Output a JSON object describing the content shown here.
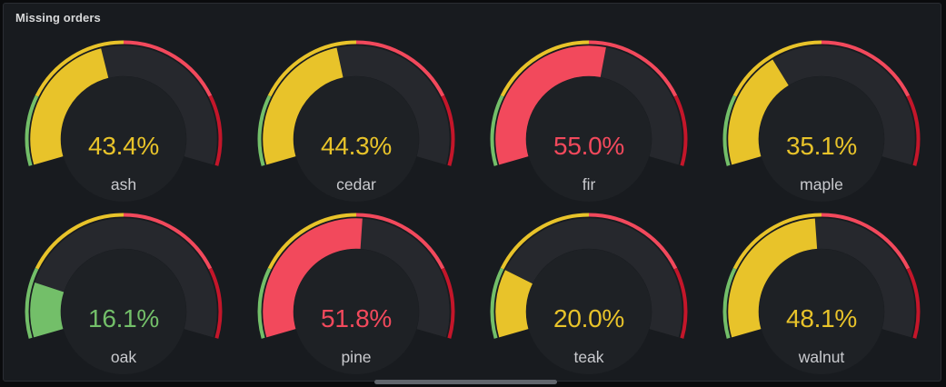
{
  "panel": {
    "title": "Missing orders"
  },
  "colors": {
    "page_bg": "#0a0b0d",
    "panel_bg": "#181b1f",
    "panel_border": "#2a2d33",
    "title_text": "#d8d9da",
    "label_text": "#c9cace",
    "track": "#26282d",
    "scrollbar_thumb": "#61656c",
    "green": "#73bf69",
    "yellow": "#e8c32a",
    "red": "#f2495c",
    "dark_red": "#c4162a"
  },
  "gauge_config": {
    "min": 0,
    "max": 100,
    "start_angle": 196,
    "sweep": 212,
    "thresholds": [
      {
        "value": 0,
        "color_key": "green"
      },
      {
        "value": 20,
        "color_key": "yellow"
      },
      {
        "value": 50,
        "color_key": "red"
      },
      {
        "value": 80,
        "color_key": "dark_red"
      }
    ]
  },
  "chart_data": {
    "type": "gauge",
    "title": "Missing orders",
    "unit": "%",
    "min": 0,
    "max": 100,
    "layout": "4 columns x 2 rows",
    "thresholds": [
      {
        "from": 0,
        "to": 20,
        "color": "green"
      },
      {
        "from": 20,
        "to": 50,
        "color": "yellow"
      },
      {
        "from": 50,
        "to": 80,
        "color": "red"
      },
      {
        "from": 80,
        "to": 100,
        "color": "dark-red"
      }
    ],
    "series": [
      {
        "label": "ash",
        "value": 43.4,
        "display": "43.4%",
        "level": "yellow"
      },
      {
        "label": "cedar",
        "value": 44.3,
        "display": "44.3%",
        "level": "yellow"
      },
      {
        "label": "fir",
        "value": 55.0,
        "display": "55.0%",
        "level": "red"
      },
      {
        "label": "maple",
        "value": 35.1,
        "display": "35.1%",
        "level": "yellow"
      },
      {
        "label": "oak",
        "value": 16.1,
        "display": "16.1%",
        "level": "green"
      },
      {
        "label": "pine",
        "value": 51.8,
        "display": "51.8%",
        "level": "red"
      },
      {
        "label": "teak",
        "value": 20.0,
        "display": "20.0%",
        "level": "yellow"
      },
      {
        "label": "walnut",
        "value": 48.1,
        "display": "48.1%",
        "level": "yellow"
      }
    ]
  },
  "scrollbar": {
    "orientation": "horizontal"
  }
}
